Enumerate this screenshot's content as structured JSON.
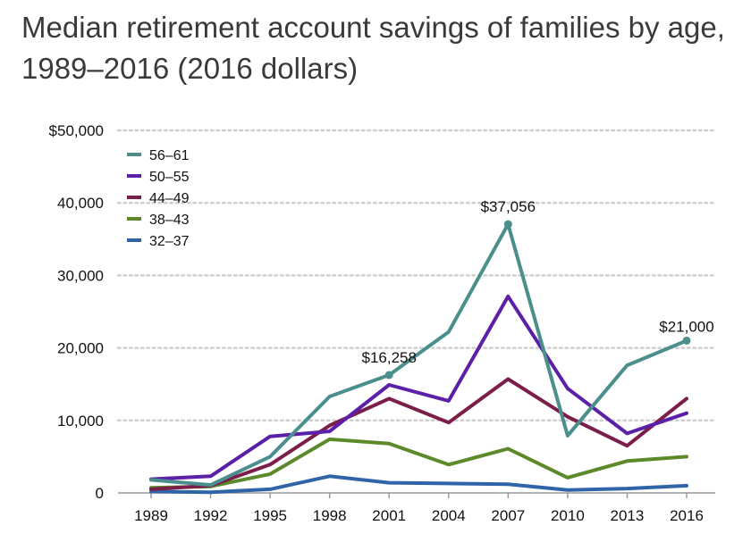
{
  "chart_data": {
    "type": "line",
    "title": "Median retirement account savings of families by age, 1989–2016 (2016 dollars)",
    "x": [
      "1989",
      "1992",
      "1995",
      "1998",
      "2001",
      "2004",
      "2007",
      "2010",
      "2013",
      "2016"
    ],
    "ylim": [
      0,
      50000
    ],
    "yticks": [
      {
        "value": 0,
        "label": "0"
      },
      {
        "value": 10000,
        "label": "10,000"
      },
      {
        "value": 20000,
        "label": "20,000"
      },
      {
        "value": 30000,
        "label": "30,000"
      },
      {
        "value": 40000,
        "label": "40,000"
      },
      {
        "value": 50000,
        "label": "$50,000"
      }
    ],
    "grid": true,
    "legend": "top-left",
    "series": [
      {
        "name": "56–61",
        "color": "#4a8f8c",
        "values": [
          1800,
          1100,
          5000,
          13300,
          16258,
          22200,
          37056,
          7900,
          17600,
          21000
        ]
      },
      {
        "name": "50–55",
        "color": "#5b1fa8",
        "values": [
          1900,
          2300,
          7800,
          8500,
          14900,
          12700,
          27100,
          14400,
          8200,
          11000
        ]
      },
      {
        "name": "44–49",
        "color": "#7b1e4a",
        "values": [
          500,
          1000,
          3900,
          9300,
          13000,
          9700,
          15700,
          10500,
          6500,
          13000
        ]
      },
      {
        "name": "38–43",
        "color": "#5c8a2a",
        "values": [
          700,
          900,
          2600,
          7400,
          6800,
          3900,
          6100,
          2100,
          4400,
          5000
        ]
      },
      {
        "name": "32–37",
        "color": "#2f64a8",
        "values": [
          200,
          100,
          500,
          2300,
          1400,
          1300,
          1200,
          400,
          600,
          1000
        ]
      }
    ],
    "annotations": [
      {
        "series": 0,
        "index": 4,
        "label": "$16,258"
      },
      {
        "series": 0,
        "index": 6,
        "label": "$37,056"
      },
      {
        "series": 0,
        "index": 9,
        "label": "$21,000"
      }
    ]
  }
}
